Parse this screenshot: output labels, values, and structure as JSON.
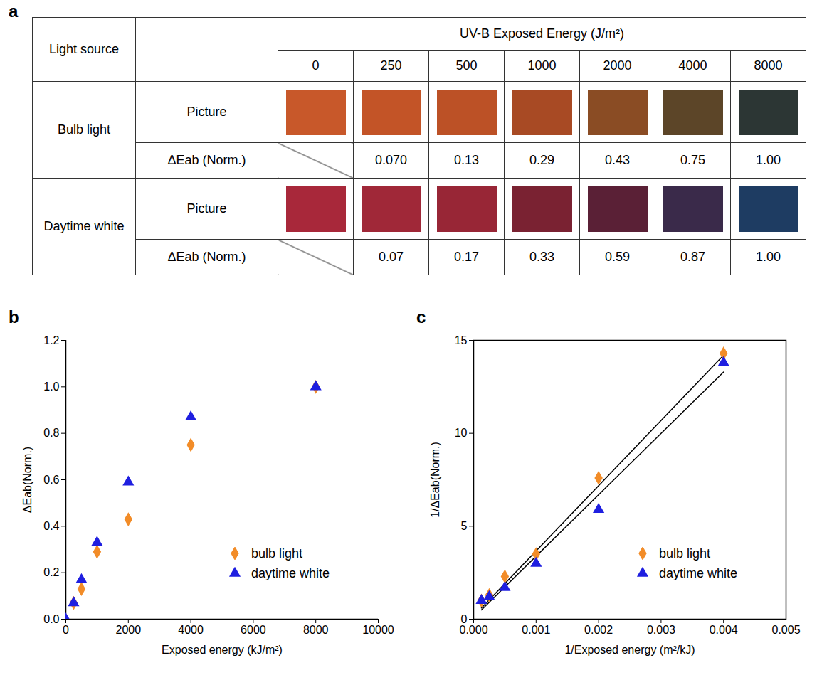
{
  "table": {
    "panel": "a",
    "header": {
      "light_source": "Light source",
      "energy_title": "UV-B Exposed Energy (J/m²)",
      "energies": [
        0,
        250,
        500,
        1000,
        2000,
        4000,
        8000
      ]
    },
    "rows": [
      {
        "light_source": "Bulb light",
        "picture_label": "Picture",
        "colors": [
          "#c8582a",
          "#c35427",
          "#bc5126",
          "#a84a24",
          "#8a4c24",
          "#5c4528",
          "#2c3634"
        ],
        "delta_label": "ΔEab (Norm.)",
        "delta": [
          null,
          "0.070",
          "0.13",
          "0.29",
          "0.43",
          "0.75",
          "1.00"
        ]
      },
      {
        "light_source": "Daytime white",
        "picture_label": "Picture",
        "colors": [
          "#a8283a",
          "#a02838",
          "#982636",
          "#7a2232",
          "#5a2036",
          "#3a2a4a",
          "#1e3c62"
        ],
        "delta_label": "ΔEab (Norm.)",
        "delta": [
          null,
          "0.07",
          "0.17",
          "0.33",
          "0.59",
          "0.87",
          "1.00"
        ]
      }
    ]
  },
  "chart_data": [
    {
      "type": "scatter",
      "panel": "b",
      "x_label": "Exposed energy (kJ/m²)",
      "y_label": "ΔEab(Norm.)",
      "xlim": [
        0,
        10000
      ],
      "xticks": [
        0,
        2000,
        4000,
        6000,
        8000,
        10000
      ],
      "ylim": [
        0,
        1.2
      ],
      "yticks": [
        {
          "value": 0,
          "label": "0.0"
        },
        0.2,
        0.4,
        0.6,
        0.8,
        {
          "value": 1,
          "label": "1.0"
        },
        1.2
      ],
      "grid": false,
      "legend": "lower right",
      "series": [
        {
          "name": "bulb light",
          "color": "#f28c28",
          "marker": "diamond",
          "x": [
            250,
            500,
            1000,
            2000,
            4000,
            8000
          ],
          "values": [
            0.07,
            0.13,
            0.29,
            0.43,
            0.75,
            1.0
          ]
        },
        {
          "name": "daytime white",
          "color": "#1f1fe0",
          "marker": "triangle",
          "x": [
            0,
            250,
            500,
            1000,
            2000,
            4000,
            8000
          ],
          "values": [
            0.0,
            0.07,
            0.17,
            0.33,
            0.59,
            0.87,
            1.0
          ]
        }
      ]
    },
    {
      "type": "scatter",
      "panel": "c",
      "x_label": "1/Exposed energy (m²/kJ)",
      "y_label": "1/ΔEab(Norm.)",
      "xlim": [
        0,
        0.005
      ],
      "xticks": [
        {
          "value": 0,
          "label": "0.000"
        },
        0.001,
        0.002,
        0.003,
        0.004,
        0.005
      ],
      "ylim": [
        0,
        15
      ],
      "yticks": [
        0,
        5,
        10,
        15
      ],
      "grid": false,
      "legend": "lower right",
      "series": [
        {
          "name": "bulb light",
          "color": "#f28c28",
          "marker": "diamond",
          "x": [
            0.000125,
            0.00025,
            0.0005,
            0.001,
            0.002,
            0.004
          ],
          "values": [
            1.0,
            1.3,
            2.3,
            3.5,
            7.6,
            14.3
          ],
          "fit": {
            "color": "#000000",
            "x": [
              0.000125,
              0.004
            ],
            "values": [
              0.6,
              14.2
            ]
          }
        },
        {
          "name": "daytime white",
          "color": "#1f1fe0",
          "marker": "triangle",
          "x": [
            0.000125,
            0.00025,
            0.0005,
            0.001,
            0.002,
            0.004
          ],
          "values": [
            1.0,
            1.2,
            1.7,
            3.0,
            5.9,
            13.8
          ],
          "fit": {
            "color": "#000000",
            "x": [
              0.000125,
              0.004
            ],
            "values": [
              0.5,
              13.3
            ]
          }
        }
      ]
    }
  ]
}
